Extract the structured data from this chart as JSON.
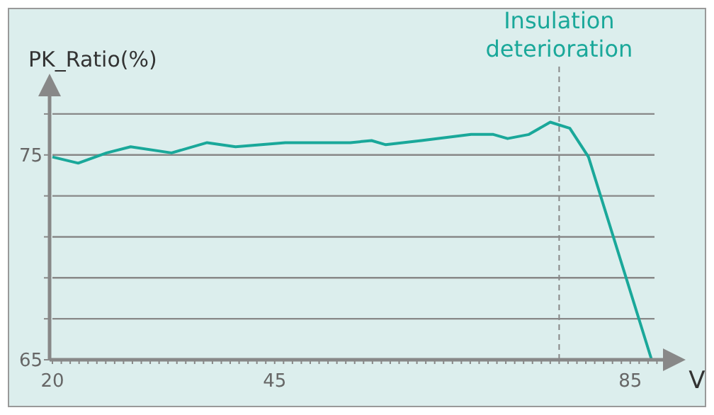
{
  "chart_data": {
    "type": "line",
    "ylabel": "PK_Ratio(%)",
    "xlabel": "V",
    "x": [
      20,
      22.9,
      26.1,
      28.8,
      33.4,
      37.4,
      40.6,
      43.5,
      46.2,
      49.8,
      53.5,
      55.9,
      57.5,
      61.5,
      67.1,
      69.6,
      71.2,
      73.6,
      76,
      78.2,
      80.3,
      87.4
    ],
    "series": [
      {
        "color": "#1aa89a",
        "values": [
          74.9,
          74.6,
          75.1,
          75.4,
          75.1,
          75.6,
          75.4,
          75.5,
          75.6,
          75.6,
          75.6,
          75.7,
          75.5,
          75.7,
          76.0,
          76.0,
          75.8,
          76.0,
          76.6,
          76.3,
          74.9,
          65
        ]
      }
    ],
    "xlim": [
      20,
      89
    ],
    "xticks": [
      20,
      45,
      85
    ],
    "ylim": [
      65,
      78
    ],
    "yticks": [
      65,
      {
        "value": 67,
        "label": null
      },
      {
        "value": 69,
        "label": null
      },
      {
        "value": 71,
        "label": null
      },
      {
        "value": 73,
        "label": null
      },
      75,
      {
        "value": 77,
        "label": null
      }
    ],
    "grid": "y",
    "marker": "none",
    "line_style": "solid",
    "ref_lines": [
      {
        "axis": "x",
        "value": 77,
        "label": "Insulation deterioration",
        "color": "#888888",
        "line_style": "dashed"
      }
    ]
  }
}
